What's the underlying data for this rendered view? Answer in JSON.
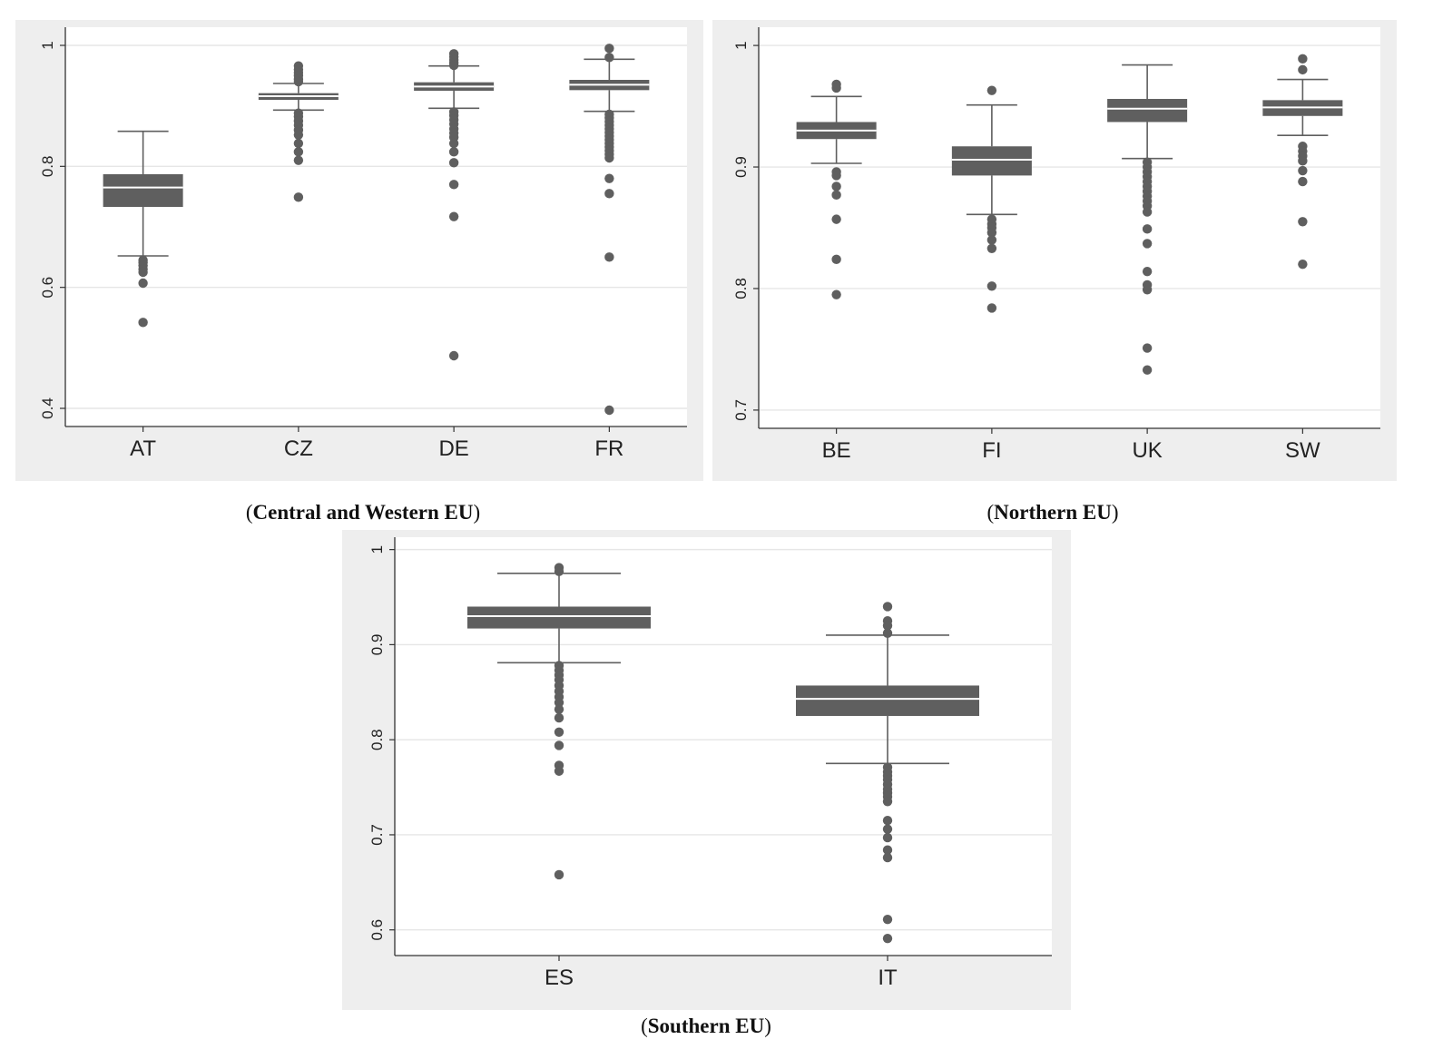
{
  "chart_data": [
    {
      "type": "box",
      "title": "Central and Western EU",
      "caption": {
        "open": "(",
        "label": "Central and Western EU",
        "close": ")"
      },
      "categories": [
        "AT",
        "CZ",
        "DE",
        "FR"
      ],
      "ylim": [
        0.37,
        1.03
      ],
      "yticks": [
        0.4,
        0.6,
        0.8,
        1
      ],
      "ytick_labels": [
        "0.4",
        "0.6",
        "0.8",
        "1"
      ],
      "grid": true,
      "box_color": "#5f5f5f",
      "series": [
        {
          "name": "AT",
          "whisker_low": 0.652,
          "q1": 0.733,
          "median": 0.765,
          "q3": 0.787,
          "whisker_high": 0.858,
          "outliers": [
            0.645,
            0.641,
            0.636,
            0.63,
            0.625,
            0.607,
            0.542
          ]
        },
        {
          "name": "CZ",
          "whisker_low": 0.893,
          "q1": 0.91,
          "median": 0.916,
          "q3": 0.921,
          "whisker_high": 0.937,
          "outliers": [
            0.966,
            0.96,
            0.955,
            0.95,
            0.944,
            0.94,
            0.888,
            0.882,
            0.875,
            0.868,
            0.86,
            0.852,
            0.838,
            0.824,
            0.81,
            0.749
          ]
        },
        {
          "name": "DE",
          "whisker_low": 0.896,
          "q1": 0.925,
          "median": 0.932,
          "q3": 0.939,
          "whisker_high": 0.966,
          "outliers": [
            0.986,
            0.981,
            0.976,
            0.971,
            0.967,
            0.89,
            0.884,
            0.877,
            0.87,
            0.862,
            0.855,
            0.848,
            0.838,
            0.824,
            0.806,
            0.77,
            0.717,
            0.487
          ]
        },
        {
          "name": "FR",
          "whisker_low": 0.891,
          "q1": 0.926,
          "median": 0.935,
          "q3": 0.943,
          "whisker_high": 0.977,
          "outliers": [
            0.995,
            0.98,
            0.886,
            0.88,
            0.874,
            0.868,
            0.862,
            0.856,
            0.85,
            0.844,
            0.838,
            0.832,
            0.826,
            0.82,
            0.814,
            0.78,
            0.755,
            0.65,
            0.397
          ]
        }
      ]
    },
    {
      "type": "box",
      "title": "Northern EU",
      "caption": {
        "open": "(",
        "label": "Northern EU",
        "close": ")"
      },
      "categories": [
        "BE",
        "FI",
        "UK",
        "SW"
      ],
      "ylim": [
        0.685,
        1.015
      ],
      "yticks": [
        0.7,
        0.8,
        0.9,
        1
      ],
      "ytick_labels": [
        "0.7",
        "0.8",
        "0.9",
        "1"
      ],
      "grid": true,
      "box_color": "#5f5f5f",
      "series": [
        {
          "name": "BE",
          "whisker_low": 0.903,
          "q1": 0.923,
          "median": 0.93,
          "q3": 0.937,
          "whisker_high": 0.958,
          "outliers": [
            0.968,
            0.965,
            0.896,
            0.893,
            0.884,
            0.877,
            0.857,
            0.824,
            0.795
          ]
        },
        {
          "name": "FI",
          "whisker_low": 0.861,
          "q1": 0.893,
          "median": 0.906,
          "q3": 0.917,
          "whisker_high": 0.951,
          "outliers": [
            0.963,
            0.857,
            0.853,
            0.85,
            0.846,
            0.84,
            0.833,
            0.802,
            0.784
          ]
        },
        {
          "name": "UK",
          "whisker_low": 0.907,
          "q1": 0.937,
          "median": 0.948,
          "q3": 0.956,
          "whisker_high": 0.984,
          "outliers": [
            0.904,
            0.9,
            0.896,
            0.892,
            0.888,
            0.884,
            0.88,
            0.876,
            0.872,
            0.868,
            0.863,
            0.849,
            0.837,
            0.814,
            0.803,
            0.799,
            0.751,
            0.733
          ]
        },
        {
          "name": "SW",
          "whisker_low": 0.926,
          "q1": 0.942,
          "median": 0.949,
          "q3": 0.955,
          "whisker_high": 0.972,
          "outliers": [
            0.989,
            0.98,
            0.917,
            0.913,
            0.909,
            0.905,
            0.897,
            0.888,
            0.855,
            0.82
          ]
        }
      ]
    },
    {
      "type": "box",
      "title": "Southern EU",
      "caption": {
        "open": "(",
        "label": "Southern EU",
        "close": ")"
      },
      "categories": [
        "ES",
        "IT"
      ],
      "ylim": [
        0.573,
        1.013
      ],
      "yticks": [
        0.6,
        0.7,
        0.8,
        0.9,
        1
      ],
      "ytick_labels": [
        "0.6",
        "0.7",
        "0.8",
        "0.9",
        "1"
      ],
      "grid": true,
      "box_color": "#5f5f5f",
      "series": [
        {
          "name": "ES",
          "whisker_low": 0.881,
          "q1": 0.917,
          "median": 0.93,
          "q3": 0.94,
          "whisker_high": 0.975,
          "outliers": [
            0.981,
            0.977,
            0.878,
            0.873,
            0.868,
            0.863,
            0.857,
            0.851,
            0.845,
            0.839,
            0.832,
            0.823,
            0.808,
            0.794,
            0.773,
            0.767,
            0.658
          ]
        },
        {
          "name": "IT",
          "whisker_low": 0.775,
          "q1": 0.825,
          "median": 0.843,
          "q3": 0.857,
          "whisker_high": 0.91,
          "outliers": [
            0.94,
            0.925,
            0.92,
            0.912,
            0.771,
            0.766,
            0.762,
            0.758,
            0.753,
            0.748,
            0.744,
            0.74,
            0.735,
            0.715,
            0.706,
            0.697,
            0.684,
            0.676,
            0.611,
            0.591
          ]
        }
      ]
    }
  ]
}
